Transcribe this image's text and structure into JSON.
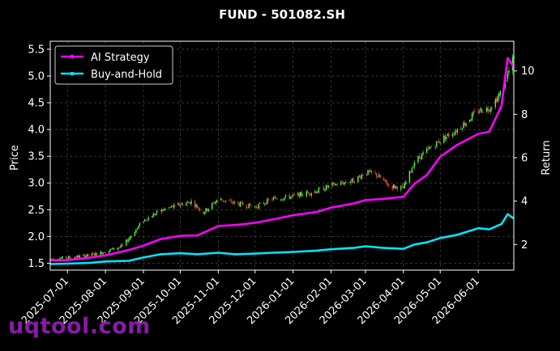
{
  "chart_data": {
    "type": "line",
    "title": "FUND - 501082.SH",
    "ylabel_left": "Price",
    "ylabel_right": "Return",
    "xlabel": "",
    "ylim_left": [
      1.37,
      5.65
    ],
    "ylim_right": [
      0.82,
      11.37
    ],
    "xlim": [
      "2025-06-17",
      "2026-06-30"
    ],
    "grid": true,
    "legend_position": "upper-left",
    "colors": {
      "background": "#000000",
      "ai_strategy": "#ff00ff",
      "buy_and_hold": "#00e5ff",
      "candle_up": "#44ff44",
      "candle_down": "#ff4444",
      "grid": "#555555"
    },
    "x_ticks": [
      "2025-07-01",
      "2025-08-01",
      "2025-09-01",
      "2025-10-01",
      "2025-11-01",
      "2025-12-01",
      "2026-01-01",
      "2026-02-01",
      "2026-03-01",
      "2026-04-01",
      "2026-05-01",
      "2026-06-01"
    ],
    "y_ticks_left": [
      "1.5",
      "2.0",
      "2.5",
      "3.0",
      "3.5",
      "4.0",
      "4.5",
      "5.0",
      "5.5"
    ],
    "y_ticks_right": [
      "2",
      "4",
      "6",
      "8",
      "10"
    ],
    "price_anchors": [
      [
        "2025-06-17",
        1.58
      ],
      [
        "2025-07-01",
        1.6
      ],
      [
        "2025-07-20",
        1.65
      ],
      [
        "2025-08-01",
        1.72
      ],
      [
        "2025-08-15",
        1.82
      ],
      [
        "2025-09-01",
        2.3
      ],
      [
        "2025-09-15",
        2.48
      ],
      [
        "2025-10-01",
        2.6
      ],
      [
        "2025-10-10",
        2.65
      ],
      [
        "2025-10-20",
        2.45
      ],
      [
        "2025-11-01",
        2.7
      ],
      [
        "2025-11-15",
        2.62
      ],
      [
        "2025-12-01",
        2.55
      ],
      [
        "2025-12-15",
        2.7
      ],
      [
        "2026-01-01",
        2.75
      ],
      [
        "2026-01-20",
        2.85
      ],
      [
        "2026-02-01",
        2.95
      ],
      [
        "2026-02-20",
        3.05
      ],
      [
        "2026-03-01",
        3.2
      ],
      [
        "2026-03-10",
        3.15
      ],
      [
        "2026-03-20",
        2.95
      ],
      [
        "2026-04-01",
        2.9
      ],
      [
        "2026-04-10",
        3.4
      ],
      [
        "2026-04-20",
        3.6
      ],
      [
        "2026-05-01",
        3.8
      ],
      [
        "2026-05-15",
        4.0
      ],
      [
        "2026-06-01",
        4.35
      ],
      [
        "2026-06-10",
        4.4
      ],
      [
        "2026-06-20",
        4.7
      ],
      [
        "2026-06-30",
        5.35
      ]
    ],
    "series": [
      {
        "name": "AI Strategy",
        "color": "#ff00ff",
        "points": [
          [
            "2025-06-17",
            1.27
          ],
          [
            "2025-07-01",
            1.28
          ],
          [
            "2025-07-20",
            1.4
          ],
          [
            "2025-08-01",
            1.5
          ],
          [
            "2025-08-20",
            1.75
          ],
          [
            "2025-09-01",
            1.95
          ],
          [
            "2025-09-15",
            2.25
          ],
          [
            "2025-10-01",
            2.4
          ],
          [
            "2025-10-15",
            2.42
          ],
          [
            "2025-11-01",
            2.85
          ],
          [
            "2025-11-15",
            2.9
          ],
          [
            "2025-12-01",
            3.0
          ],
          [
            "2025-12-15",
            3.15
          ],
          [
            "2026-01-01",
            3.35
          ],
          [
            "2026-01-20",
            3.5
          ],
          [
            "2026-02-01",
            3.7
          ],
          [
            "2026-02-20",
            3.9
          ],
          [
            "2026-03-01",
            4.05
          ],
          [
            "2026-03-15",
            4.1
          ],
          [
            "2026-04-01",
            4.2
          ],
          [
            "2026-04-10",
            4.8
          ],
          [
            "2026-04-20",
            5.2
          ],
          [
            "2026-05-01",
            6.05
          ],
          [
            "2026-05-15",
            6.6
          ],
          [
            "2026-06-01",
            7.1
          ],
          [
            "2026-06-10",
            7.2
          ],
          [
            "2026-06-20",
            8.4
          ],
          [
            "2026-06-25",
            10.6
          ],
          [
            "2026-06-30",
            10.2
          ]
        ]
      },
      {
        "name": "Buy-and-Hold",
        "color": "#00e5ff",
        "points": [
          [
            "2025-06-17",
            1.1
          ],
          [
            "2025-07-01",
            1.12
          ],
          [
            "2025-07-20",
            1.16
          ],
          [
            "2025-08-01",
            1.22
          ],
          [
            "2025-08-20",
            1.25
          ],
          [
            "2025-09-01",
            1.4
          ],
          [
            "2025-09-15",
            1.55
          ],
          [
            "2025-10-01",
            1.6
          ],
          [
            "2025-10-15",
            1.55
          ],
          [
            "2025-11-01",
            1.62
          ],
          [
            "2025-11-15",
            1.55
          ],
          [
            "2025-12-01",
            1.58
          ],
          [
            "2025-12-15",
            1.62
          ],
          [
            "2026-01-01",
            1.66
          ],
          [
            "2026-01-20",
            1.72
          ],
          [
            "2026-02-01",
            1.78
          ],
          [
            "2026-02-20",
            1.85
          ],
          [
            "2026-03-01",
            1.92
          ],
          [
            "2026-03-15",
            1.85
          ],
          [
            "2026-04-01",
            1.8
          ],
          [
            "2026-04-10",
            2.0
          ],
          [
            "2026-04-20",
            2.1
          ],
          [
            "2026-05-01",
            2.3
          ],
          [
            "2026-05-15",
            2.45
          ],
          [
            "2026-06-01",
            2.75
          ],
          [
            "2026-06-10",
            2.7
          ],
          [
            "2026-06-20",
            2.95
          ],
          [
            "2026-06-25",
            3.4
          ],
          [
            "2026-06-30",
            3.2
          ]
        ]
      }
    ]
  },
  "watermark": "uqtool.com"
}
